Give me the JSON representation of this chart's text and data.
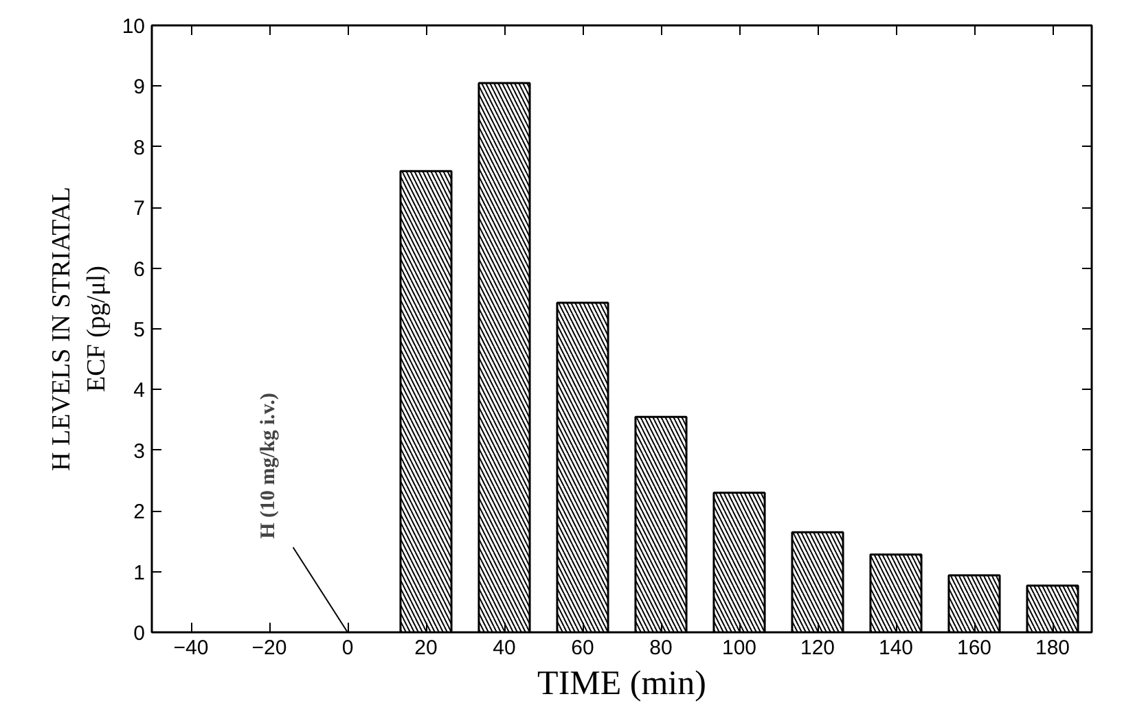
{
  "chart_data": {
    "type": "bar",
    "xlabel": "TIME (min)",
    "ylabel": "H LEVELS IN STRIATAL\nECF (pg/μl)",
    "x": [
      20,
      40,
      60,
      80,
      100,
      120,
      140,
      160,
      180
    ],
    "values": [
      7.6,
      9.05,
      5.43,
      3.55,
      2.3,
      1.65,
      1.28,
      0.94,
      0.77
    ],
    "color": "#000000",
    "xlim": [
      -50,
      190
    ],
    "xticks": [
      -40,
      -20,
      0,
      20,
      40,
      60,
      80,
      100,
      120,
      140,
      160,
      180
    ],
    "ylim": [
      0,
      10
    ],
    "yticks": [
      0,
      1,
      2,
      3,
      4,
      5,
      6,
      7,
      8,
      9,
      10
    ],
    "annotations": [
      "H (10 mg/kg i.v.)"
    ],
    "grid": false
  }
}
